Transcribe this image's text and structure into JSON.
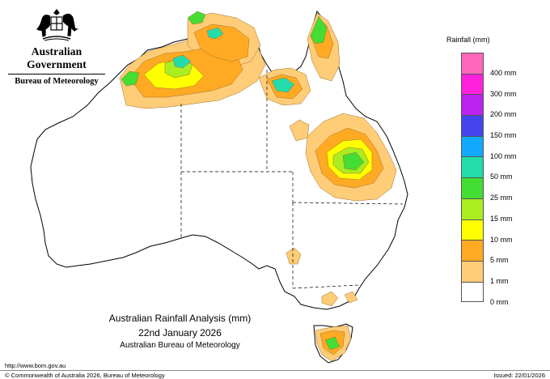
{
  "header": {
    "government": "Australian Government",
    "agency": "Bureau of Meteorology"
  },
  "legend": {
    "title": "Rainfall (mm)",
    "items": [
      {
        "label": "400 mm",
        "color": "#ff66bb"
      },
      {
        "label": "300 mm",
        "color": "#ff22dd"
      },
      {
        "label": "200 mm",
        "color": "#bb22ee"
      },
      {
        "label": "150 mm",
        "color": "#4444ee"
      },
      {
        "label": "100 mm",
        "color": "#11aaff"
      },
      {
        "label": "50 mm",
        "color": "#22ddaa"
      },
      {
        "label": "25 mm",
        "color": "#44dd33"
      },
      {
        "label": "15 mm",
        "color": "#aaee22"
      },
      {
        "label": "10 mm",
        "color": "#ffff00"
      },
      {
        "label": "5 mm",
        "color": "#ffaa22"
      },
      {
        "label": "1 mm",
        "color": "#ffcc77"
      },
      {
        "label": "0 mm",
        "color": "#ffffff"
      }
    ]
  },
  "caption": {
    "title": "Australian Rainfall Analysis (mm)",
    "date": "22nd January 2026",
    "agency": "Australian Bureau of Meteorology"
  },
  "footer": {
    "url": "http://www.bom.gov.au",
    "copyright": "© Commonwealth of Australia 2026, Bureau of Meteorology",
    "issued": "Issued: 22/01/2026"
  }
}
